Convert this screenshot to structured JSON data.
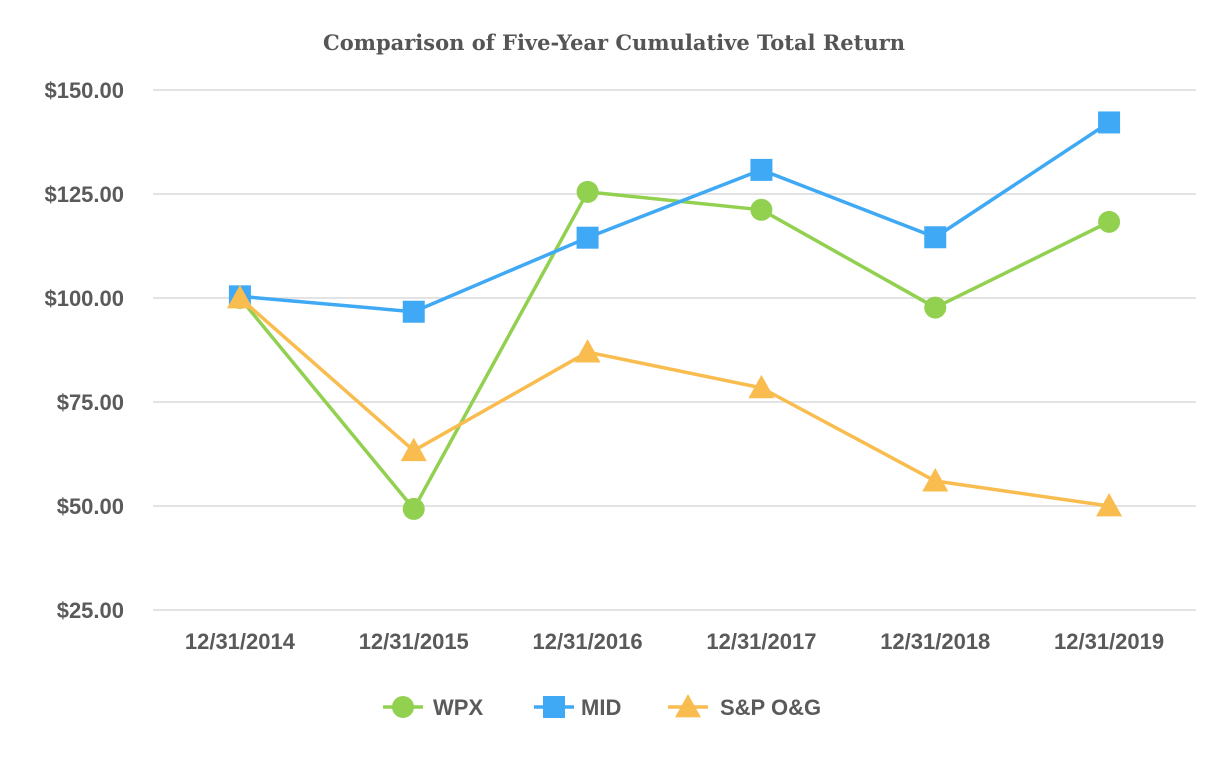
{
  "chart_data": {
    "type": "line",
    "title": "Comparison of Five-Year Cumulative Total Return",
    "categories": [
      "12/31/2014",
      "12/31/2015",
      "12/31/2016",
      "12/31/2017",
      "12/31/2018",
      "12/31/2019"
    ],
    "y_ticks": [
      25,
      50,
      75,
      100,
      125,
      150
    ],
    "y_tick_labels": [
      "$25.00",
      "$50.00",
      "$75.00",
      "$100.00",
      "$125.00",
      "$150.00"
    ],
    "ylim": [
      25,
      150
    ],
    "grid": true,
    "legend_position": "bottom",
    "series": [
      {
        "name": "WPX",
        "color": "#92d050",
        "marker": "circle",
        "values": [
          100.0,
          49.3,
          125.5,
          121.2,
          97.7,
          118.3
        ]
      },
      {
        "name": "MID",
        "color": "#3fa9f5",
        "marker": "square",
        "values": [
          100.4,
          96.7,
          114.5,
          130.8,
          114.6,
          142.2
        ]
      },
      {
        "name": "S&P O&G",
        "color": "#f9bc4f",
        "marker": "triangle",
        "values": [
          100.0,
          63.3,
          87.0,
          78.4,
          56.0,
          50.0
        ]
      }
    ]
  }
}
